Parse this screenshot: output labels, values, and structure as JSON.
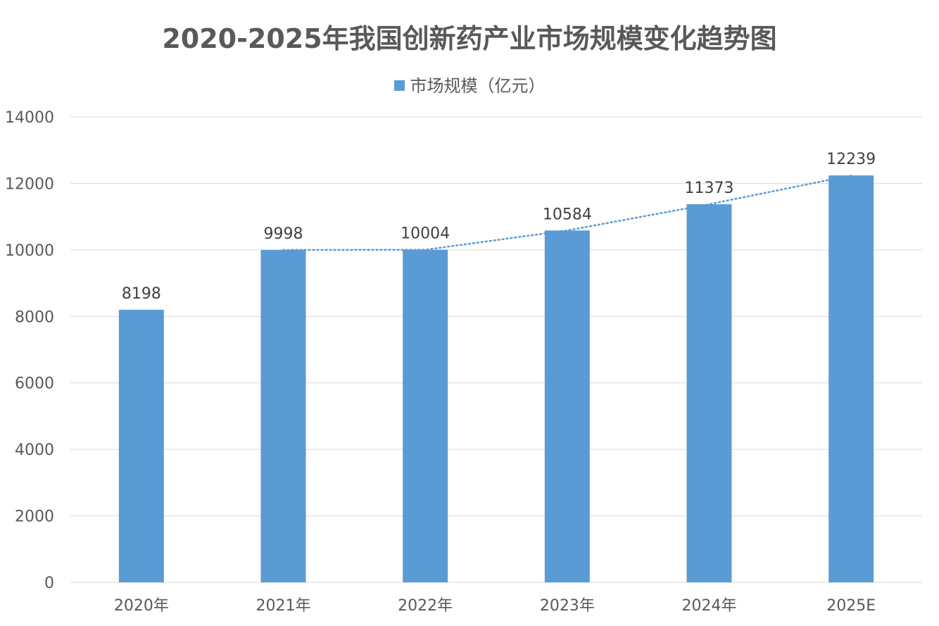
{
  "chart_data": {
    "type": "bar",
    "title": "2020-2025年我国创新药产业市场规模变化趋势图",
    "categories": [
      "2020年",
      "2021年",
      "2022年",
      "2023年",
      "2024年",
      "2025E"
    ],
    "series": [
      {
        "name": "市场规模（亿元）",
        "values": [
          8198,
          9998,
          10004,
          10584,
          11373,
          12239
        ]
      }
    ],
    "ylim": [
      0,
      14000
    ],
    "yticks": [
      0,
      2000,
      4000,
      6000,
      8000,
      10000,
      12000,
      14000
    ],
    "grid": true,
    "legend": "top-center",
    "trendline": {
      "type": "linear",
      "style": "dotted"
    },
    "colors": {
      "bar": "#5b9bd5",
      "trendline": "#5b9bd5",
      "grid": "#d9d9d9",
      "text": "#595959"
    }
  }
}
